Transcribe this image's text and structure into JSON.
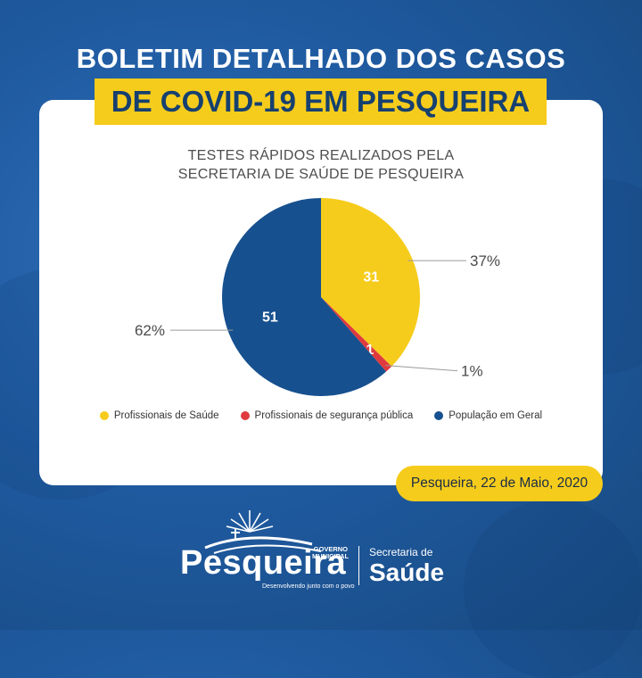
{
  "header": {
    "title_line1": "BOLETIM DETALHADO DOS CASOS",
    "title_line2": "DE COVID-19 EM PESQUEIRA"
  },
  "chart_data": {
    "type": "pie",
    "title_line1": "TESTES RÁPIDOS REALIZADOS PELA",
    "title_line2": "SECRETARIA DE SAÚDE DE PESQUEIRA",
    "slices": [
      {
        "label": "Profissionais de Saúde",
        "value": 31,
        "percent_label": "37%",
        "color": "#f6cc1c"
      },
      {
        "label": "Profissionais de segurança pública",
        "value": 1,
        "percent_label": "1%",
        "color": "#e03a3e"
      },
      {
        "label": "População em Geral",
        "value": 51,
        "percent_label": "62%",
        "color": "#16508f"
      }
    ],
    "legend_position": "bottom"
  },
  "footer": {
    "date": "Pesqueira, 22 de Maio, 2020",
    "logo": {
      "name": "Pesqueira",
      "government_line1": "GOVERNO",
      "government_line2": "MUNICIPAL",
      "slogan": "Desenvolvendo junto com o povo",
      "secretaria_label": "Secretaria de",
      "secretaria_name": "Saúde"
    }
  }
}
